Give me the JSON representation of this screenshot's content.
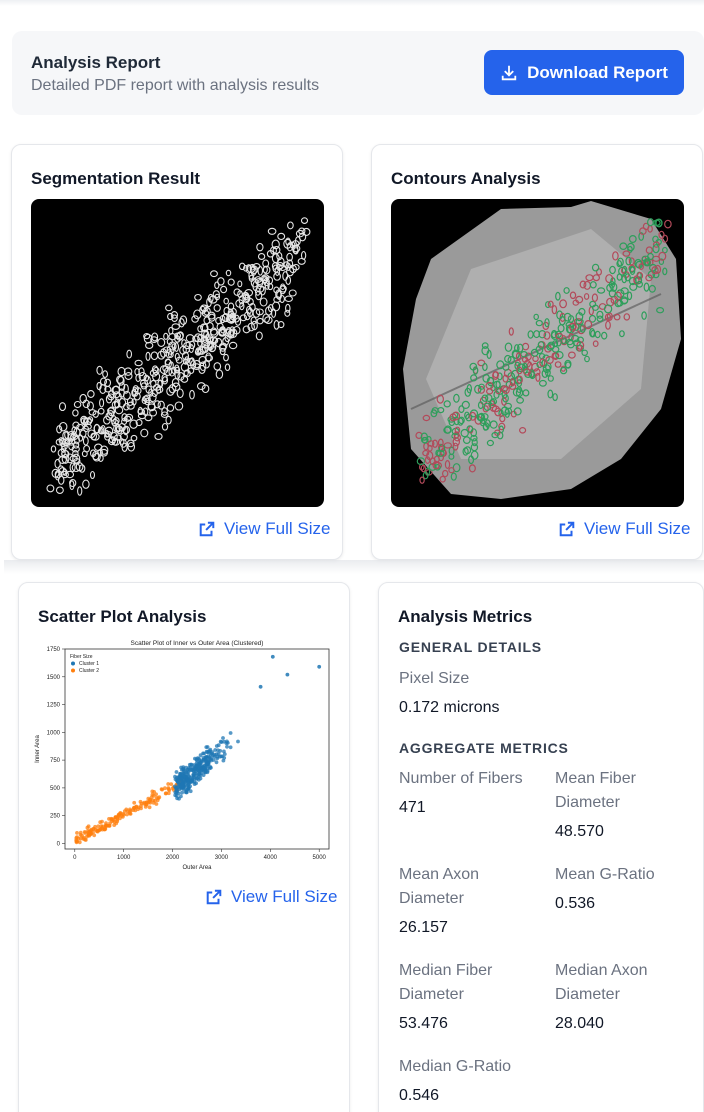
{
  "report": {
    "title": "Analysis Report",
    "subtitle": "Detailed PDF report with analysis results",
    "download_label": "Download Report",
    "accent": "#2563eb"
  },
  "segmentation": {
    "title": "Segmentation Result",
    "view_label": "View Full Size",
    "icon": "external-link-icon"
  },
  "contours": {
    "title": "Contours Analysis",
    "view_label": "View Full Size",
    "icon": "external-link-icon"
  },
  "scatter": {
    "title": "Scatter Plot Analysis",
    "view_label": "View Full Size",
    "icon": "external-link-icon"
  },
  "chart_data": {
    "type": "scatter",
    "title": "Scatter Plot of Inner vs Outer Area (Clustered)",
    "xlabel": "Outer Area",
    "ylabel": "Inner Area",
    "xlim": [
      -200,
      5200
    ],
    "ylim": [
      -50,
      1750
    ],
    "xticks": [
      "0",
      "1000",
      "2000",
      "3000",
      "4000",
      "5000"
    ],
    "yticks": [
      "0",
      "250",
      "500",
      "750",
      "1000",
      "1250",
      "1500",
      "1750"
    ],
    "legend_title": "Fiber Size",
    "legend_position": "top-left",
    "series": [
      {
        "name": "Cluster 1",
        "color": "#1f77b4",
        "x_range": [
          1900,
          5000
        ],
        "y_range": [
          350,
          1680
        ]
      },
      {
        "name": "Cluster 2",
        "color": "#ff7f0e",
        "x_range": [
          30,
          2200
        ],
        "y_range": [
          10,
          650
        ]
      }
    ]
  },
  "metrics": {
    "title": "Analysis Metrics",
    "general_heading": "GENERAL DETAILS",
    "pixel_size_label": "Pixel Size",
    "pixel_size_value": "0.172 microns",
    "aggregate_heading": "AGGREGATE METRICS",
    "num_fibers_label": "Number of Fibers",
    "num_fibers_value": "471",
    "mean_fiber_label": "Mean Fiber Diameter",
    "mean_fiber_value": "48.570",
    "mean_axon_label": "Mean Axon Diameter",
    "mean_axon_value": "26.157",
    "mean_g_label": "Mean G-Ratio",
    "mean_g_value": "0.536",
    "median_fiber_label": "Median Fiber Diameter",
    "median_fiber_value": "53.476",
    "median_axon_label": "Median Axon Diameter",
    "median_axon_value": "28.040",
    "median_g_label": "Median G-Ratio",
    "median_g_value": "0.546"
  }
}
